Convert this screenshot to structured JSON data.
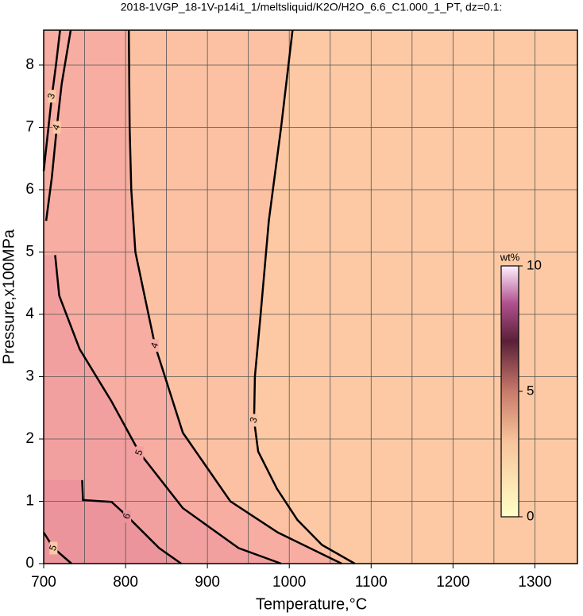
{
  "chart_data": {
    "type": "contour",
    "title": "2018-1VGP_18-1V-p14i1_1/meltsliquid/K2O/H2O_6.6_C1.000_1_PT, dz=0.1:",
    "x_label": "Temperature,°C",
    "y_label": "Pressure,x100MPa",
    "xlim": [
      700,
      1352
    ],
    "ylim": [
      0,
      8.56
    ],
    "xticks": [
      700,
      800,
      900,
      1000,
      1100,
      1200,
      1300
    ],
    "xminorticks": [
      750,
      850,
      950,
      1050,
      1150,
      1250
    ],
    "yticks": [
      0,
      1,
      2,
      3,
      4,
      5,
      6,
      7,
      8
    ],
    "grid": true,
    "background": "#fcc9a4",
    "contours": [
      {
        "level": 3,
        "color": "#fbc1a2",
        "x": [
          1004,
          990,
          975,
          965,
          958,
          957,
          962,
          985,
          1010,
          1040,
          1080
        ],
        "y": [
          8.56,
          7.0,
          5.5,
          4.0,
          3.0,
          2.3,
          1.8,
          1.2,
          0.7,
          0.3,
          0.0
        ]
      },
      {
        "level": 4,
        "color": "#f7ada1",
        "x": [
          804,
          805,
          807,
          812,
          836,
          870,
          928,
          986,
          1064
        ],
        "y": [
          8.56,
          7.0,
          6.0,
          5.0,
          3.5,
          2.1,
          1.0,
          0.5,
          0.0
        ]
      },
      {
        "level": 5,
        "color": "#f2a09f",
        "x": [
          714,
          719,
          744,
          783,
          817,
          870,
          938,
          990
        ],
        "y": [
          4.95,
          4.3,
          3.44,
          2.6,
          1.78,
          0.89,
          0.25,
          0.0
        ]
      },
      {
        "level": 6,
        "color": "#ec949b",
        "x": [
          747,
          748,
          783,
          802,
          841,
          868
        ],
        "y": [
          1.34,
          1.02,
          0.99,
          0.76,
          0.25,
          0.0
        ]
      },
      {
        "level": 5,
        "x": [
          700,
          712,
          734
        ],
        "y": [
          0.5,
          0.25,
          0.0
        ]
      },
      {
        "level": 4,
        "x": [
          703,
          710,
          716,
          722,
          733
        ],
        "y": [
          5.5,
          6.2,
          7.0,
          7.7,
          8.56
        ]
      },
      {
        "level": 3,
        "x": [
          700,
          705,
          710,
          715,
          720
        ],
        "y": [
          6.3,
          6.9,
          7.5,
          8.0,
          8.56
        ]
      }
    ],
    "colorbar": {
      "label": "wt%",
      "lim": [
        0,
        10
      ],
      "ticks": [
        0,
        5,
        10
      ]
    }
  }
}
